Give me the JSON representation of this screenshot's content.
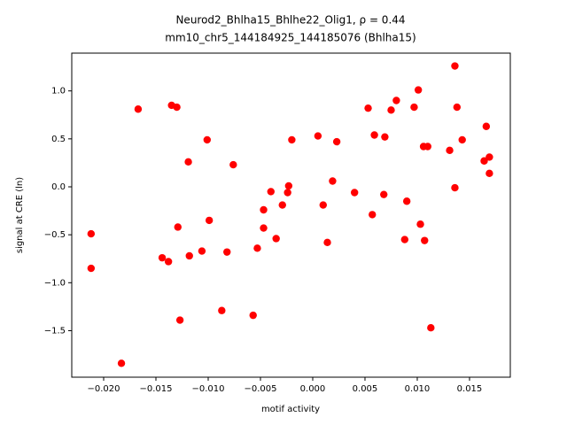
{
  "chart_data": {
    "type": "scatter",
    "title": "Neurod2_Bhlha15_Bhlhe22_Olig1, ρ = 0.44",
    "subtitle": "mm10_chr5_144184925_144185076 (Bhlha15)",
    "x_label": "motif activity",
    "y_label": "signal at CRE (ln)",
    "xlim": [
      -0.02305,
      0.0189
    ],
    "ylim": [
      -1.985,
      1.394
    ],
    "xticks": [
      {
        "value": -0.02,
        "label": "−0.020"
      },
      {
        "value": -0.015,
        "label": "−0.015"
      },
      {
        "value": -0.01,
        "label": "−0.010"
      },
      {
        "value": -0.005,
        "label": "−0.005"
      },
      {
        "value": 0,
        "label": "0.000"
      },
      0.005,
      {
        "value": 0.01,
        "label": "0.010"
      },
      0.015
    ],
    "yticks": [
      {
        "value": -1.5,
        "label": "−1.5"
      },
      {
        "value": -1,
        "label": "−1.0"
      },
      {
        "value": -0.5,
        "label": "−0.5"
      },
      {
        "value": 0,
        "label": "0.0"
      },
      0.5,
      {
        "value": 1,
        "label": "1.0"
      }
    ],
    "color": "#ff0000",
    "x": [
      -0.0212,
      -0.0212,
      -0.0183,
      -0.0167,
      -0.0135,
      -0.013,
      -0.0144,
      -0.0138,
      -0.0129,
      -0.0127,
      -0.0119,
      -0.0118,
      -0.0106,
      -0.0101,
      -0.0099,
      -0.0087,
      -0.0082,
      -0.0076,
      -0.0057,
      -0.0053,
      -0.0047,
      -0.0047,
      -0.004,
      -0.0035,
      -0.0029,
      -0.0024,
      -0.0023,
      -0.002,
      0.0005,
      0.001,
      0.0014,
      0.0019,
      0.0023,
      0.004,
      0.0053,
      0.0057,
      0.0059,
      0.0068,
      0.0069,
      0.0075,
      0.008,
      0.0088,
      0.009,
      0.0097,
      0.0101,
      0.0103,
      0.0106,
      0.0107,
      0.011,
      0.0113,
      0.0131,
      0.0136,
      0.0136,
      0.0138,
      0.0143,
      0.0164,
      0.0166,
      0.0169,
      0.0169
    ],
    "values": [
      -0.49,
      -0.85,
      -1.84,
      0.81,
      0.85,
      0.83,
      -0.74,
      -0.78,
      -0.42,
      -1.39,
      0.26,
      -0.72,
      -0.67,
      0.49,
      -0.35,
      -1.29,
      -0.68,
      0.23,
      -1.34,
      -0.64,
      -0.43,
      -0.24,
      -0.05,
      -0.54,
      -0.19,
      -0.06,
      0.01,
      0.49,
      0.53,
      -0.19,
      -0.58,
      0.06,
      0.47,
      -0.06,
      0.82,
      -0.29,
      0.54,
      -0.08,
      0.52,
      0.8,
      0.9,
      -0.55,
      -0.15,
      0.83,
      1.01,
      -0.39,
      0.42,
      -0.56,
      0.42,
      -1.47,
      0.38,
      1.26,
      -0.01,
      0.83,
      0.49,
      0.27,
      0.63,
      0.31,
      0.14
    ]
  }
}
